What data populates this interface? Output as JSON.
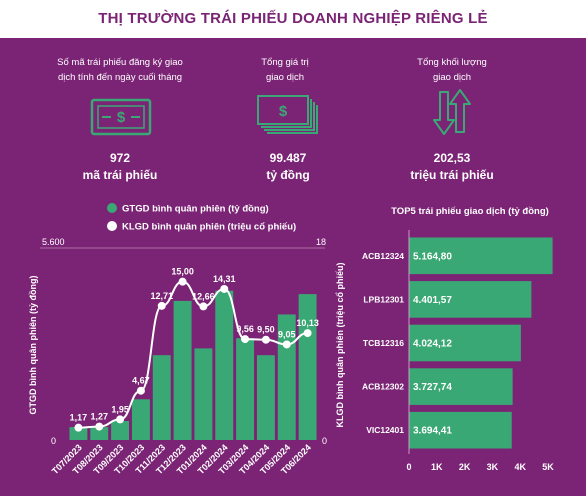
{
  "title": "THỊ TRƯỜNG TRÁI PHIẾU DOANH NGHIỆP RIÊNG LẺ",
  "kpis": [
    {
      "label_line1": "Số mã trái phiếu đăng ký giao",
      "label_line2": "dịch tính đến ngày cuối tháng",
      "icon": "banknote-icon",
      "value": "972",
      "unit": "mã trái phiếu"
    },
    {
      "label_line1": "Tổng giá trị",
      "label_line2": "giao dịch",
      "icon": "money-stack-icon",
      "value": "99.487",
      "unit": "tỷ đồng"
    },
    {
      "label_line1": "Tổng khối lượng",
      "label_line2": "giao dịch",
      "icon": "up-down-arrows-icon",
      "value": "202,53",
      "unit": "triệu trái phiếu"
    }
  ],
  "colors": {
    "background": "#7b2475",
    "title": "#7b2475",
    "bar": "#3aa874",
    "line": "#ffffff",
    "icon": "#3aa874",
    "hbar": "#3aa874"
  },
  "chart_data": [
    {
      "type": "bar",
      "legend": [
        {
          "label": "GTGD bình quân phiên (tỷ đồng)",
          "marker": "green-dot"
        },
        {
          "label": "KLGD bình quân phiên (triệu cổ phiếu)",
          "marker": "white-dot"
        }
      ],
      "legend_position": "top",
      "categories": [
        "T07/2023",
        "T08/2023",
        "T09/2023",
        "T10/2023",
        "T11/2023",
        "T12/2023",
        "T01/2024",
        "T02/2024",
        "T03/2024",
        "T04/2024",
        "T05/2024",
        "T06/2024"
      ],
      "series": [
        {
          "name": "GTGD bình quân phiên (tỷ đồng)",
          "type": "bar",
          "axis": "left",
          "values": [
            380,
            380,
            560,
            1200,
            2500,
            4100,
            2700,
            4400,
            3000,
            2500,
            3700,
            4300
          ]
        },
        {
          "name": "KLGD bình quân phiên (triệu cổ phiếu)",
          "type": "line",
          "axis": "right",
          "values": [
            1.17,
            1.27,
            1.95,
            4.67,
            12.71,
            15.0,
            12.66,
            14.31,
            9.56,
            9.5,
            9.05,
            10.13
          ]
        }
      ],
      "data_labels": [
        "1,17",
        "1,27",
        "1,95",
        "4,67",
        "12,71",
        "15,00",
        "12,66",
        "14,31",
        "9,56",
        "9,50",
        "9,05",
        "10,13"
      ],
      "ylabel": "GTGD bình quân phiên (tỷ đồng)",
      "y2label": "KLGD bình quân phiên (triệu cổ phiếu)",
      "ylim": [
        0,
        5600
      ],
      "y2lim": [
        0,
        18
      ],
      "y_ticks": [
        "5.600",
        "0"
      ],
      "y2_ticks": [
        "18",
        "0"
      ],
      "grid": false
    },
    {
      "type": "bar",
      "orientation": "horizontal",
      "title": "TOP5 trái phiếu giao dịch (tỷ đồng)",
      "categories": [
        "ACB12324",
        "LPB12301",
        "TCB12316",
        "ACB12302",
        "VIC12401"
      ],
      "values": [
        5164.8,
        4401.57,
        4024.12,
        3727.74,
        3694.41
      ],
      "value_labels": [
        "5.164,80",
        "4.401,57",
        "4.024,12",
        "3.727,74",
        "3.694,41"
      ],
      "xlim": [
        0,
        5000
      ],
      "x_ticks": [
        0,
        1000,
        2000,
        3000,
        4000,
        5000
      ],
      "x_tick_labels": [
        "0",
        "1K",
        "2K",
        "3K",
        "4K",
        "5K"
      ],
      "grid": false
    }
  ]
}
